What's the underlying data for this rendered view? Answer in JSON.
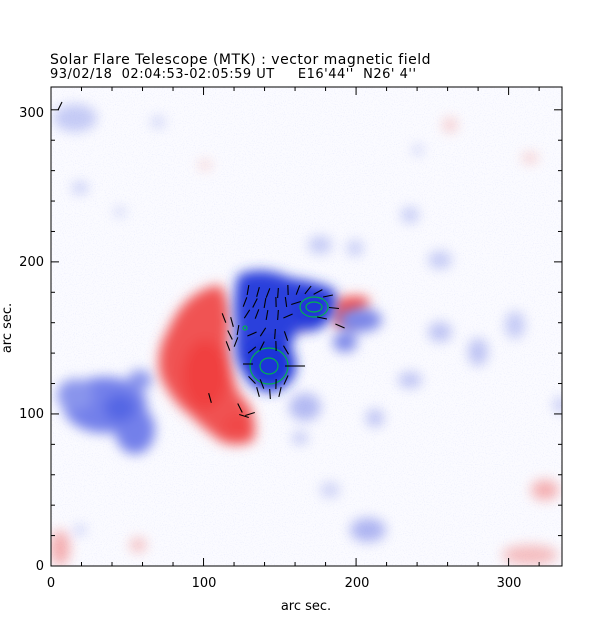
{
  "header": {
    "title": "Solar Flare Telescope (MTK) : vector magnetic field",
    "subtitle": "93/02/18  02:04:53-02:05:59 UT     E16'44''  N26' 4''"
  },
  "axes": {
    "xlabel": "arc sec.",
    "ylabel": "arc sec.",
    "x_ticks": [
      "0",
      "100",
      "200",
      "300"
    ],
    "y_ticks": [
      "0",
      "100",
      "200",
      "300"
    ],
    "x_range": [
      0,
      335
    ],
    "y_range": [
      0,
      315
    ]
  },
  "colors": {
    "positive_polarity": "#f04646",
    "negative_polarity": "#4b5ae6",
    "contour": "#00b050",
    "vectors": "#000000"
  }
}
